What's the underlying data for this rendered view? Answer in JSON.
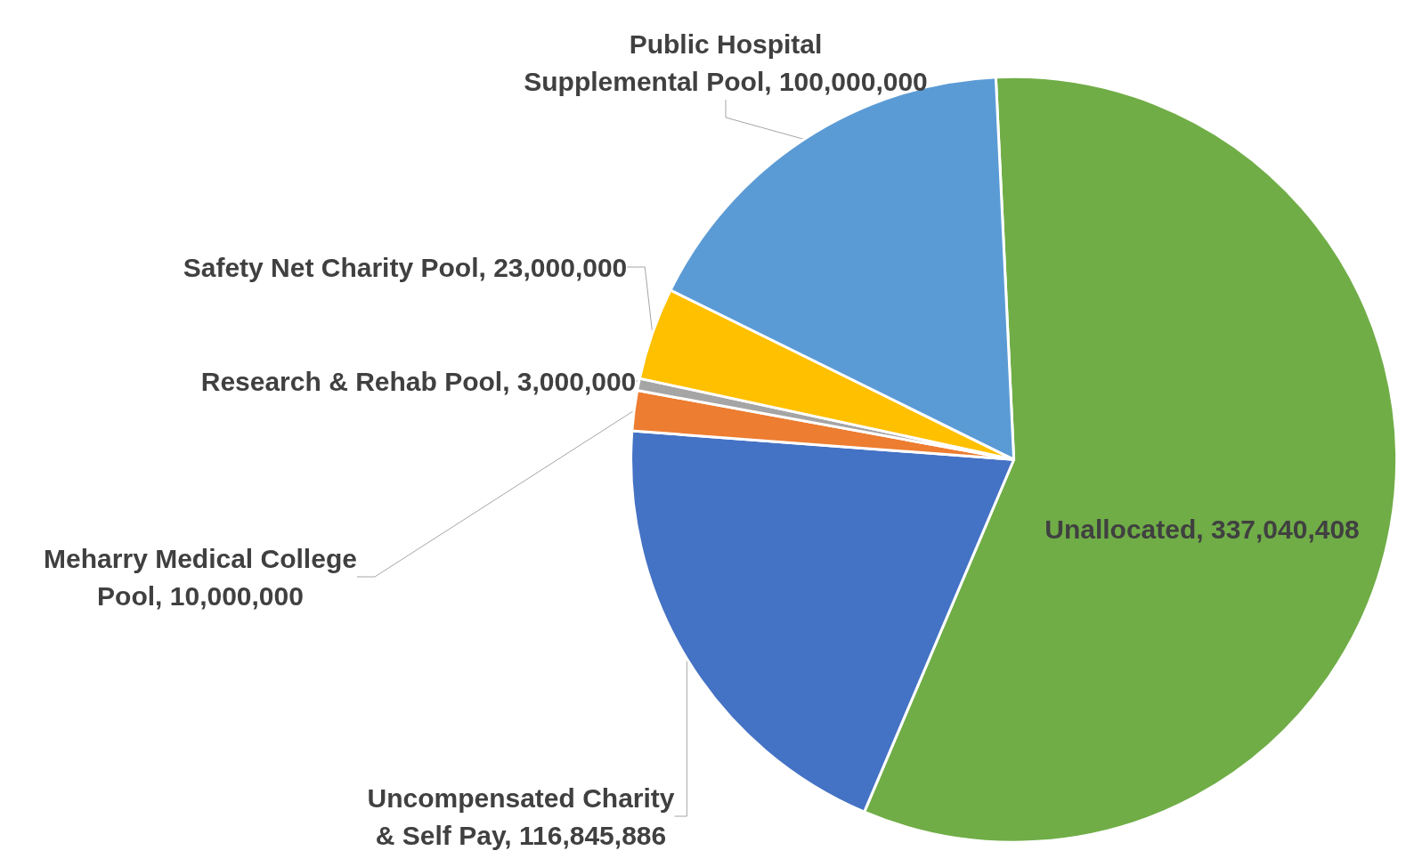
{
  "chart_data": {
    "type": "pie",
    "categories": [
      "Unallocated",
      "Uncompensated Charity & Self Pay",
      "Meharry Medical College Pool",
      "Research & Rehab Pool",
      "Safety Net Charity Pool",
      "Public Hospital Supplemental Pool"
    ],
    "values": [
      337040408,
      116845886,
      10000000,
      3000000,
      23000000,
      100000000
    ],
    "colors": [
      "#70ad47",
      "#4472c4",
      "#ed7d31",
      "#a5a5a5",
      "#ffc000",
      "#5b9bd5"
    ],
    "value_labels": [
      "337,040,408",
      "116,845,886",
      "10,000,000",
      "3,000,000",
      "23,000,000",
      "100,000,000"
    ]
  }
}
